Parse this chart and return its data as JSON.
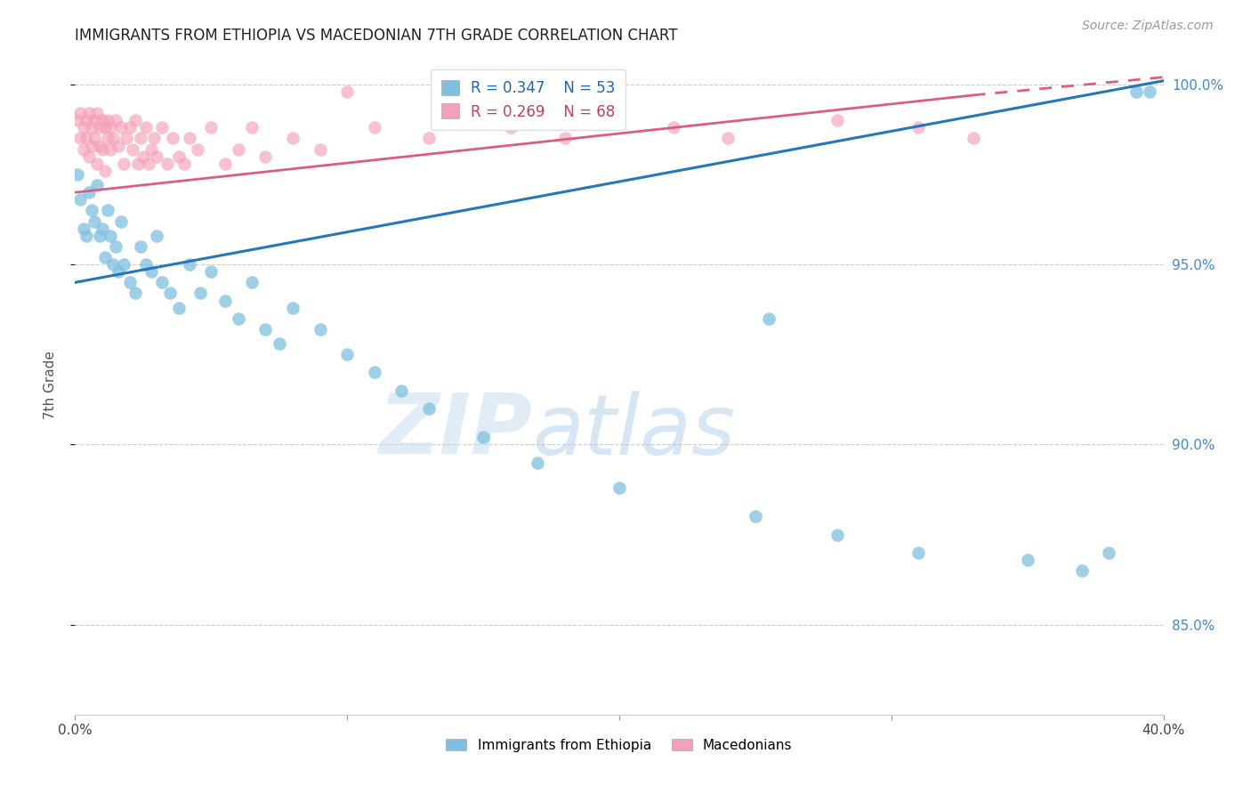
{
  "title": "IMMIGRANTS FROM ETHIOPIA VS MACEDONIAN 7TH GRADE CORRELATION CHART",
  "source": "Source: ZipAtlas.com",
  "ylabel": "7th Grade",
  "legend_blue_r": "R = 0.347",
  "legend_blue_n": "N = 53",
  "legend_pink_r": "R = 0.269",
  "legend_pink_n": "N = 68",
  "blue_color": "#7fbfdf",
  "pink_color": "#f4a0b8",
  "blue_line_color": "#2777b8",
  "pink_line_color": "#d95f7f",
  "watermark_zip": "ZIP",
  "watermark_atlas": "atlas",
  "xlim": [
    0.0,
    0.4
  ],
  "ylim": [
    0.825,
    1.008
  ],
  "y_tick_vals": [
    0.85,
    0.9,
    0.95,
    1.0
  ],
  "y_tick_labels": [
    "85.0%",
    "90.0%",
    "95.0%",
    "100.0%"
  ],
  "x_tick_vals": [
    0.0,
    0.1,
    0.2,
    0.3,
    0.4
  ],
  "x_tick_show_labels": [
    true,
    false,
    false,
    false,
    true
  ],
  "x_tick_label_vals": [
    "0.0%",
    "",
    "",
    "",
    "40.0%"
  ],
  "background_color": "#ffffff",
  "grid_color": "#cccccc",
  "blue_line_x0": 0.0,
  "blue_line_y0": 0.945,
  "blue_line_x1": 0.4,
  "blue_line_y1": 1.001,
  "pink_line_x0": 0.0,
  "pink_line_y0": 0.97,
  "pink_line_x1_solid": 0.33,
  "pink_line_y1_solid": 0.997,
  "pink_line_x1_dash": 0.4,
  "pink_line_y1_dash": 1.002,
  "blue_pts_x": [
    0.001,
    0.002,
    0.003,
    0.004,
    0.005,
    0.006,
    0.007,
    0.008,
    0.009,
    0.01,
    0.011,
    0.012,
    0.013,
    0.014,
    0.015,
    0.016,
    0.017,
    0.018,
    0.02,
    0.022,
    0.024,
    0.026,
    0.028,
    0.03,
    0.032,
    0.035,
    0.038,
    0.042,
    0.046,
    0.05,
    0.055,
    0.06,
    0.065,
    0.07,
    0.075,
    0.08,
    0.09,
    0.1,
    0.11,
    0.12,
    0.13,
    0.15,
    0.17,
    0.2,
    0.25,
    0.28,
    0.31,
    0.35,
    0.37,
    0.38,
    0.39,
    0.395,
    0.255
  ],
  "blue_pts_y": [
    0.975,
    0.968,
    0.96,
    0.958,
    0.97,
    0.965,
    0.962,
    0.972,
    0.958,
    0.96,
    0.952,
    0.965,
    0.958,
    0.95,
    0.955,
    0.948,
    0.962,
    0.95,
    0.945,
    0.942,
    0.955,
    0.95,
    0.948,
    0.958,
    0.945,
    0.942,
    0.938,
    0.95,
    0.942,
    0.948,
    0.94,
    0.935,
    0.945,
    0.932,
    0.928,
    0.938,
    0.932,
    0.925,
    0.92,
    0.915,
    0.91,
    0.902,
    0.895,
    0.888,
    0.88,
    0.875,
    0.87,
    0.868,
    0.865,
    0.87,
    0.998,
    0.998,
    0.935
  ],
  "pink_pts_x": [
    0.001,
    0.002,
    0.002,
    0.003,
    0.003,
    0.004,
    0.004,
    0.005,
    0.005,
    0.006,
    0.006,
    0.007,
    0.007,
    0.008,
    0.008,
    0.009,
    0.009,
    0.01,
    0.01,
    0.011,
    0.011,
    0.012,
    0.012,
    0.013,
    0.013,
    0.014,
    0.015,
    0.016,
    0.017,
    0.018,
    0.019,
    0.02,
    0.021,
    0.022,
    0.023,
    0.024,
    0.025,
    0.026,
    0.027,
    0.028,
    0.029,
    0.03,
    0.032,
    0.034,
    0.036,
    0.038,
    0.04,
    0.042,
    0.045,
    0.05,
    0.055,
    0.06,
    0.065,
    0.07,
    0.08,
    0.09,
    0.1,
    0.11,
    0.13,
    0.15,
    0.16,
    0.18,
    0.2,
    0.22,
    0.24,
    0.28,
    0.31,
    0.33
  ],
  "pink_pts_y": [
    0.99,
    0.985,
    0.992,
    0.988,
    0.982,
    0.99,
    0.985,
    0.992,
    0.98,
    0.988,
    0.983,
    0.99,
    0.985,
    0.992,
    0.978,
    0.988,
    0.983,
    0.99,
    0.982,
    0.988,
    0.976,
    0.99,
    0.985,
    0.988,
    0.982,
    0.985,
    0.99,
    0.983,
    0.988,
    0.978,
    0.985,
    0.988,
    0.982,
    0.99,
    0.978,
    0.985,
    0.98,
    0.988,
    0.978,
    0.982,
    0.985,
    0.98,
    0.988,
    0.978,
    0.985,
    0.98,
    0.978,
    0.985,
    0.982,
    0.988,
    0.978,
    0.982,
    0.988,
    0.98,
    0.985,
    0.982,
    0.998,
    0.988,
    0.985,
    0.992,
    0.988,
    0.985,
    0.992,
    0.988,
    0.985,
    0.99,
    0.988,
    0.985
  ]
}
